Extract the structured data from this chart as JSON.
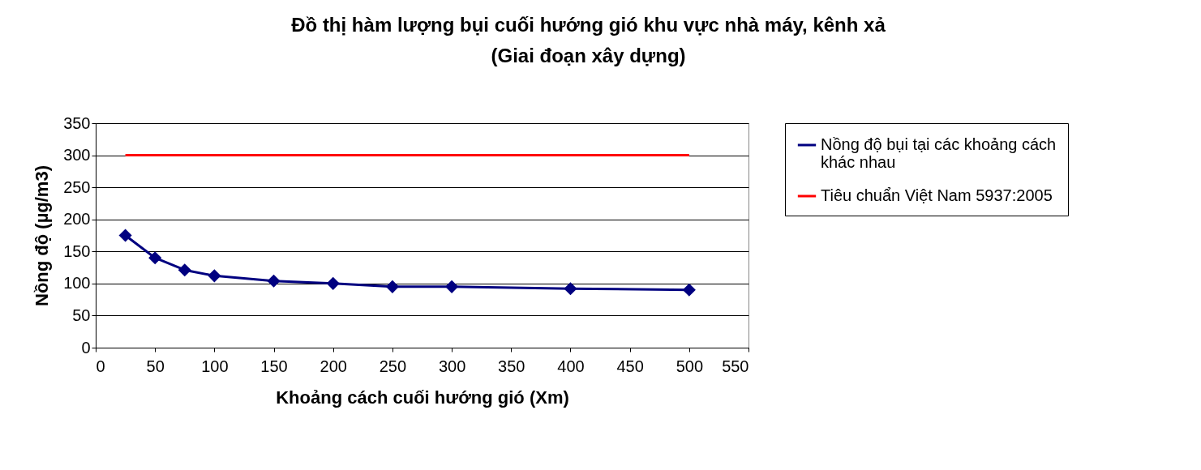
{
  "chart_data": {
    "type": "line",
    "title": "Đồ thị hàm lượng bụi cuối hướng gió khu vực nhà máy, kênh xả",
    "subtitle": "(Giai đoạn xây dựng)",
    "xlabel": "Khoảng cách cuối hướng gió (Xm)",
    "ylabel": "Nồng độ (µg/m3)",
    "xlim": [
      0,
      550
    ],
    "xticks": [
      0,
      50,
      100,
      150,
      200,
      250,
      300,
      350,
      400,
      450,
      500,
      550
    ],
    "ylim": [
      0,
      350
    ],
    "yticks": [
      0,
      50,
      100,
      150,
      200,
      250,
      300,
      350
    ],
    "grid": "y",
    "legend": "right",
    "series": [
      {
        "name": "Nồng độ bụi tại các khoảng cách khác nhau",
        "color": "#000080",
        "marker": "diamond",
        "x": [
          25,
          50,
          75,
          100,
          150,
          200,
          250,
          300,
          400,
          500
        ],
        "values": [
          175,
          140,
          121,
          112,
          104,
          100,
          95,
          95,
          92,
          90
        ]
      },
      {
        "name": "Tiêu chuẩn Việt Nam 5937:2005",
        "color": "#ff0000",
        "marker": "none",
        "x": [
          25,
          500
        ],
        "values": [
          300,
          300
        ]
      }
    ]
  }
}
